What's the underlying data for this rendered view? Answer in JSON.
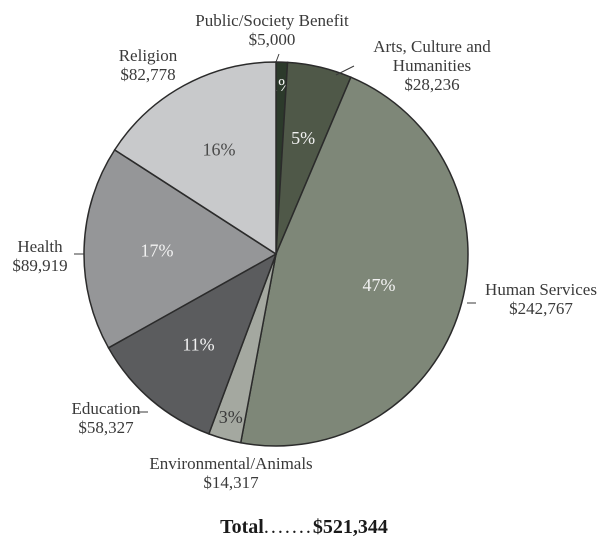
{
  "chart_data": {
    "type": "pie",
    "slices": [
      {
        "name": "Public/Society Benefit",
        "amount": "$5,000",
        "value": 5000,
        "pct": "1%",
        "color": "#2c3a2b",
        "pct_color": "#f2f2f2"
      },
      {
        "name": "Arts, Culture and Humanities",
        "amount": "$28,236",
        "value": 28236,
        "pct": "5%",
        "color": "#4f5848",
        "pct_color": "#f2f2f2"
      },
      {
        "name": "Human Services",
        "amount": "$242,767",
        "value": 242767,
        "pct": "47%",
        "color": "#7e8778",
        "pct_color": "#f2f2f2"
      },
      {
        "name": "Environmental/Animals",
        "amount": "$14,317",
        "value": 14317,
        "pct": "3%",
        "color": "#a4a8a0",
        "pct_color": "#3a3a3a"
      },
      {
        "name": "Education",
        "amount": "$58,327",
        "value": 58327,
        "pct": "11%",
        "color": "#5b5c5e",
        "pct_color": "#f2f2f2"
      },
      {
        "name": "Health",
        "amount": "$89,919",
        "value": 89919,
        "pct": "17%",
        "color": "#959698",
        "pct_color": "#f2f2f2"
      },
      {
        "name": "Religion",
        "amount": "$82,778",
        "value": 82778,
        "pct": "16%",
        "color": "#c8c9cb",
        "pct_color": "#4a4a4a"
      }
    ],
    "total_label": "Total",
    "total_value": "$521,344",
    "total_dots": "......."
  }
}
